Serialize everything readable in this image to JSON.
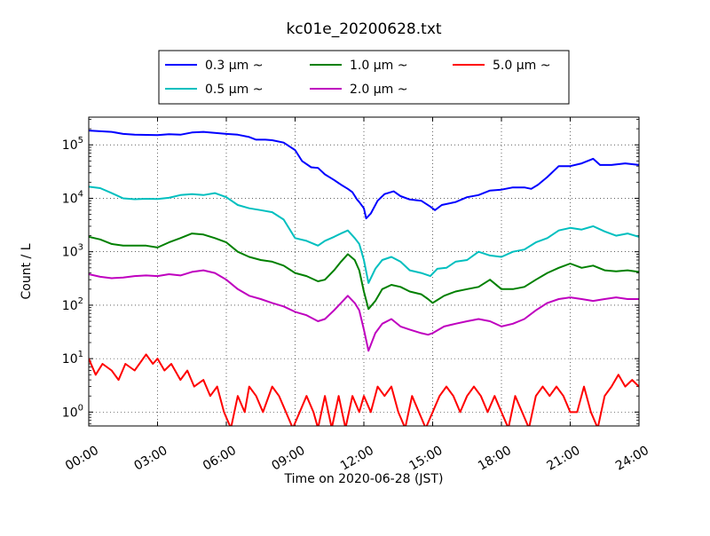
{
  "chart_data": {
    "type": "line",
    "title": "kc01e_20200628.txt",
    "xlabel": "Time on 2020-06-28 (JST)",
    "ylabel": "Count / L",
    "x_unit": "hours",
    "xlim": [
      0,
      24
    ],
    "ylim": [
      0.55,
      330000
    ],
    "yscale": "log",
    "grid": true,
    "legend_position": "top-center",
    "xticks": [
      "00:00",
      "03:00",
      "06:00",
      "09:00",
      "12:00",
      "15:00",
      "18:00",
      "21:00",
      "24:00"
    ],
    "yticks": [
      {
        "base": "10",
        "exp": "0"
      },
      {
        "base": "10",
        "exp": "1"
      },
      {
        "base": "10",
        "exp": "2"
      },
      {
        "base": "10",
        "exp": "3"
      },
      {
        "base": "10",
        "exp": "4"
      },
      {
        "base": "10",
        "exp": "5"
      }
    ],
    "series": [
      {
        "name": "0.3 μm ~",
        "color": "#0000ff",
        "points": [
          [
            0,
            185000
          ],
          [
            1,
            175000
          ],
          [
            1.5,
            160000
          ],
          [
            2,
            155000
          ],
          [
            3,
            152000
          ],
          [
            3.5,
            158000
          ],
          [
            4,
            155000
          ],
          [
            4.5,
            170000
          ],
          [
            5,
            175000
          ],
          [
            5.5,
            168000
          ],
          [
            6,
            160000
          ],
          [
            6.5,
            155000
          ],
          [
            7,
            140000
          ],
          [
            7.3,
            125000
          ],
          [
            7.7,
            125000
          ],
          [
            8,
            122000
          ],
          [
            8.5,
            110000
          ],
          [
            9,
            80000
          ],
          [
            9.3,
            50000
          ],
          [
            9.7,
            38000
          ],
          [
            10,
            37000
          ],
          [
            10.3,
            28000
          ],
          [
            10.7,
            22000
          ],
          [
            11,
            18000
          ],
          [
            11.3,
            15000
          ],
          [
            11.5,
            13000
          ],
          [
            11.7,
            9500
          ],
          [
            11.8,
            8500
          ],
          [
            12,
            6500
          ],
          [
            12.1,
            4200
          ],
          [
            12.3,
            5200
          ],
          [
            12.6,
            9000
          ],
          [
            12.9,
            12000
          ],
          [
            13.3,
            13500
          ],
          [
            13.6,
            11000
          ],
          [
            14,
            9500
          ],
          [
            14.5,
            9000
          ],
          [
            14.9,
            7000
          ],
          [
            15.1,
            6000
          ],
          [
            15.4,
            7500
          ],
          [
            16,
            8500
          ],
          [
            16.5,
            10500
          ],
          [
            17,
            11500
          ],
          [
            17.5,
            14000
          ],
          [
            18,
            14500
          ],
          [
            18.5,
            16000
          ],
          [
            19,
            16000
          ],
          [
            19.3,
            15000
          ],
          [
            19.6,
            18000
          ],
          [
            20,
            25000
          ],
          [
            20.5,
            40000
          ],
          [
            21,
            40000
          ],
          [
            21.5,
            45000
          ],
          [
            22,
            55000
          ],
          [
            22.3,
            42000
          ],
          [
            22.8,
            42000
          ],
          [
            23.4,
            45000
          ],
          [
            24,
            42000
          ]
        ]
      },
      {
        "name": "0.5 μm ~",
        "color": "#00bfbf",
        "points": [
          [
            0,
            16500
          ],
          [
            0.5,
            15500
          ],
          [
            1,
            12500
          ],
          [
            1.5,
            10000
          ],
          [
            2,
            9600
          ],
          [
            2.5,
            9800
          ],
          [
            3,
            9700
          ],
          [
            3.5,
            10200
          ],
          [
            4,
            11500
          ],
          [
            4.5,
            12000
          ],
          [
            5,
            11500
          ],
          [
            5.5,
            12500
          ],
          [
            6,
            10500
          ],
          [
            6.5,
            7500
          ],
          [
            7,
            6500
          ],
          [
            7.5,
            6000
          ],
          [
            8,
            5500
          ],
          [
            8.5,
            4000
          ],
          [
            9,
            1800
          ],
          [
            9.5,
            1600
          ],
          [
            10,
            1300
          ],
          [
            10.3,
            1600
          ],
          [
            10.7,
            1900
          ],
          [
            11,
            2200
          ],
          [
            11.3,
            2500
          ],
          [
            11.6,
            1800
          ],
          [
            11.8,
            1400
          ],
          [
            12,
            700
          ],
          [
            12.2,
            260
          ],
          [
            12.5,
            480
          ],
          [
            12.8,
            700
          ],
          [
            13.2,
            800
          ],
          [
            13.6,
            650
          ],
          [
            14,
            450
          ],
          [
            14.5,
            400
          ],
          [
            14.9,
            350
          ],
          [
            15.2,
            480
          ],
          [
            15.6,
            500
          ],
          [
            16,
            650
          ],
          [
            16.5,
            700
          ],
          [
            17,
            1000
          ],
          [
            17.5,
            850
          ],
          [
            18,
            800
          ],
          [
            18.5,
            1000
          ],
          [
            19,
            1100
          ],
          [
            19.5,
            1500
          ],
          [
            20,
            1800
          ],
          [
            20.5,
            2500
          ],
          [
            21,
            2800
          ],
          [
            21.5,
            2600
          ],
          [
            22,
            3000
          ],
          [
            22.5,
            2400
          ],
          [
            23,
            2000
          ],
          [
            23.5,
            2200
          ],
          [
            24,
            1900
          ]
        ]
      },
      {
        "name": "1.0 μm ~",
        "color": "#008000",
        "points": [
          [
            0,
            1900
          ],
          [
            0.5,
            1700
          ],
          [
            1,
            1400
          ],
          [
            1.5,
            1300
          ],
          [
            2,
            1300
          ],
          [
            2.5,
            1300
          ],
          [
            3,
            1200
          ],
          [
            3.5,
            1500
          ],
          [
            4,
            1800
          ],
          [
            4.5,
            2200
          ],
          [
            5,
            2100
          ],
          [
            5.5,
            1800
          ],
          [
            6,
            1500
          ],
          [
            6.5,
            1000
          ],
          [
            7,
            800
          ],
          [
            7.5,
            700
          ],
          [
            8,
            650
          ],
          [
            8.5,
            550
          ],
          [
            9,
            400
          ],
          [
            9.5,
            350
          ],
          [
            10,
            280
          ],
          [
            10.3,
            300
          ],
          [
            10.7,
            450
          ],
          [
            11,
            650
          ],
          [
            11.3,
            900
          ],
          [
            11.6,
            700
          ],
          [
            11.8,
            450
          ],
          [
            12,
            180
          ],
          [
            12.2,
            85
          ],
          [
            12.5,
            120
          ],
          [
            12.8,
            200
          ],
          [
            13.2,
            240
          ],
          [
            13.6,
            220
          ],
          [
            14,
            180
          ],
          [
            14.5,
            160
          ],
          [
            14.8,
            130
          ],
          [
            15,
            110
          ],
          [
            15.5,
            150
          ],
          [
            16,
            180
          ],
          [
            16.5,
            200
          ],
          [
            17,
            220
          ],
          [
            17.5,
            300
          ],
          [
            18,
            200
          ],
          [
            18.5,
            200
          ],
          [
            19,
            220
          ],
          [
            19.5,
            300
          ],
          [
            20,
            400
          ],
          [
            20.5,
            500
          ],
          [
            21,
            600
          ],
          [
            21.5,
            500
          ],
          [
            22,
            550
          ],
          [
            22.5,
            450
          ],
          [
            23,
            430
          ],
          [
            23.5,
            450
          ],
          [
            24,
            420
          ]
        ]
      },
      {
        "name": "2.0 μm ~",
        "color": "#bf00bf",
        "points": [
          [
            0,
            380
          ],
          [
            0.5,
            340
          ],
          [
            1,
            320
          ],
          [
            1.5,
            330
          ],
          [
            2,
            350
          ],
          [
            2.5,
            360
          ],
          [
            3,
            350
          ],
          [
            3.5,
            380
          ],
          [
            4,
            360
          ],
          [
            4.5,
            420
          ],
          [
            5,
            450
          ],
          [
            5.5,
            400
          ],
          [
            6,
            300
          ],
          [
            6.5,
            200
          ],
          [
            7,
            150
          ],
          [
            7.5,
            130
          ],
          [
            8,
            110
          ],
          [
            8.5,
            95
          ],
          [
            9,
            75
          ],
          [
            9.5,
            65
          ],
          [
            10,
            50
          ],
          [
            10.3,
            55
          ],
          [
            10.7,
            80
          ],
          [
            11,
            110
          ],
          [
            11.3,
            150
          ],
          [
            11.6,
            110
          ],
          [
            11.8,
            80
          ],
          [
            12,
            35
          ],
          [
            12.2,
            14
          ],
          [
            12.5,
            30
          ],
          [
            12.8,
            45
          ],
          [
            13.2,
            55
          ],
          [
            13.6,
            40
          ],
          [
            14,
            35
          ],
          [
            14.5,
            30
          ],
          [
            14.8,
            28
          ],
          [
            15,
            30
          ],
          [
            15.5,
            40
          ],
          [
            16,
            45
          ],
          [
            16.5,
            50
          ],
          [
            17,
            55
          ],
          [
            17.5,
            50
          ],
          [
            18,
            40
          ],
          [
            18.5,
            45
          ],
          [
            19,
            55
          ],
          [
            19.5,
            80
          ],
          [
            20,
            110
          ],
          [
            20.5,
            130
          ],
          [
            21,
            140
          ],
          [
            21.5,
            130
          ],
          [
            22,
            120
          ],
          [
            22.5,
            130
          ],
          [
            23,
            140
          ],
          [
            23.5,
            130
          ],
          [
            24,
            130
          ]
        ]
      },
      {
        "name": "5.0 μm ~",
        "color": "#ff0000",
        "points": [
          [
            0,
            10
          ],
          [
            0.3,
            5
          ],
          [
            0.6,
            8
          ],
          [
            1,
            6
          ],
          [
            1.3,
            4
          ],
          [
            1.6,
            8
          ],
          [
            2,
            6
          ],
          [
            2.5,
            12
          ],
          [
            2.8,
            8
          ],
          [
            3,
            10
          ],
          [
            3.3,
            6
          ],
          [
            3.6,
            8
          ],
          [
            4,
            4
          ],
          [
            4.3,
            6
          ],
          [
            4.6,
            3
          ],
          [
            5,
            4
          ],
          [
            5.3,
            2
          ],
          [
            5.6,
            3
          ],
          [
            5.9,
            1
          ],
          [
            6.2,
            0.5
          ],
          [
            6.5,
            2
          ],
          [
            6.8,
            1
          ],
          [
            7,
            3
          ],
          [
            7.3,
            2
          ],
          [
            7.6,
            1
          ],
          [
            8,
            3
          ],
          [
            8.3,
            2
          ],
          [
            8.6,
            1
          ],
          [
            8.9,
            0.5
          ],
          [
            9.2,
            1
          ],
          [
            9.5,
            2
          ],
          [
            9.8,
            1
          ],
          [
            10,
            0.5
          ],
          [
            10.3,
            2
          ],
          [
            10.6,
            0.5
          ],
          [
            10.9,
            2
          ],
          [
            11.2,
            0.5
          ],
          [
            11.5,
            2
          ],
          [
            11.8,
            1
          ],
          [
            12,
            2
          ],
          [
            12.3,
            1
          ],
          [
            12.6,
            3
          ],
          [
            12.9,
            2
          ],
          [
            13.2,
            3
          ],
          [
            13.5,
            1
          ],
          [
            13.8,
            0.5
          ],
          [
            14.1,
            2
          ],
          [
            14.4,
            1
          ],
          [
            14.7,
            0.5
          ],
          [
            15,
            1
          ],
          [
            15.3,
            2
          ],
          [
            15.6,
            3
          ],
          [
            15.9,
            2
          ],
          [
            16.2,
            1
          ],
          [
            16.5,
            2
          ],
          [
            16.8,
            3
          ],
          [
            17.1,
            2
          ],
          [
            17.4,
            1
          ],
          [
            17.7,
            2
          ],
          [
            18,
            1
          ],
          [
            18.3,
            0.5
          ],
          [
            18.6,
            2
          ],
          [
            18.9,
            1
          ],
          [
            19.2,
            0.5
          ],
          [
            19.5,
            2
          ],
          [
            19.8,
            3
          ],
          [
            20.1,
            2
          ],
          [
            20.4,
            3
          ],
          [
            20.7,
            2
          ],
          [
            21,
            1
          ],
          [
            21.3,
            1
          ],
          [
            21.6,
            3
          ],
          [
            21.9,
            1
          ],
          [
            22.2,
            0.5
          ],
          [
            22.5,
            2
          ],
          [
            22.8,
            3
          ],
          [
            23.1,
            5
          ],
          [
            23.4,
            3
          ],
          [
            23.7,
            4
          ],
          [
            24,
            3
          ]
        ]
      }
    ]
  }
}
